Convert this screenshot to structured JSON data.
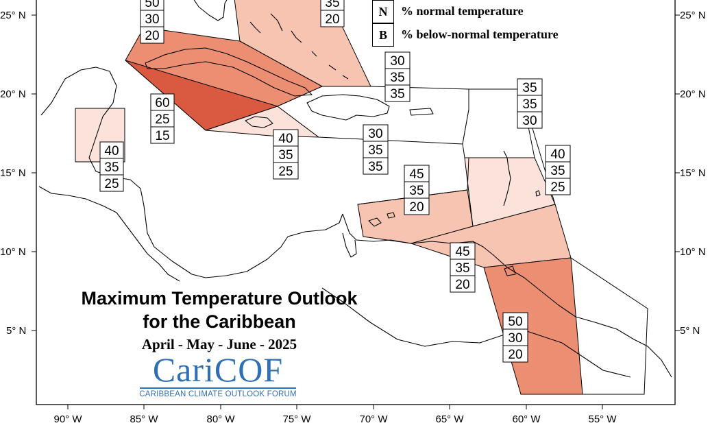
{
  "title": {
    "line1": "Maximum Temperature Outlook",
    "line2": "for the Caribbean",
    "period": "April - May - June - 2025"
  },
  "logo": {
    "name_prefix": "Cari",
    "name_suffix": "COF",
    "tagline": "CARIBBEAN CLIMATE OUTLOOK FORUM"
  },
  "legend": [
    {
      "key": "N",
      "text": "% normal temperature"
    },
    {
      "key": "B",
      "text": "% below-normal temperature"
    }
  ],
  "axes": {
    "lat_labels": [
      "25° N",
      "20° N",
      "15° N",
      "10° N",
      "5° N"
    ],
    "lon_labels": [
      "90° W",
      "85° W",
      "80° W",
      "75° W",
      "70° W",
      "65° W",
      "60° W",
      "55° W"
    ]
  },
  "colors": {
    "above_40": "#fbe3db",
    "above_45": "#f7c4b1",
    "above_50": "#ec8e72",
    "above_60": "#d95a40",
    "border": "#000000"
  },
  "probability_boxes": [
    {
      "region": "bahamas-west",
      "above": "50",
      "normal": "30",
      "below": "20"
    },
    {
      "region": "bahamas-east",
      "above": "",
      "normal": "35",
      "below": "20"
    },
    {
      "region": "belize",
      "above": "40",
      "normal": "35",
      "below": "25"
    },
    {
      "region": "cayman-jamaica",
      "above": "60",
      "normal": "25",
      "below": "15"
    },
    {
      "region": "jamaica-haiti-sea",
      "above": "40",
      "normal": "35",
      "below": "25"
    },
    {
      "region": "turks-caicos",
      "above": "30",
      "normal": "35",
      "below": "35"
    },
    {
      "region": "hispaniola-puerto-rico",
      "above": "30",
      "normal": "35",
      "below": "35"
    },
    {
      "region": "leeward-islands",
      "above": "35",
      "normal": "35",
      "below": "30"
    },
    {
      "region": "windward-islands",
      "above": "40",
      "normal": "35",
      "below": "25"
    },
    {
      "region": "abc-islands",
      "above": "45",
      "normal": "35",
      "below": "20"
    },
    {
      "region": "trinidad-tobago",
      "above": "45",
      "normal": "35",
      "below": "20"
    },
    {
      "region": "guianas",
      "above": "50",
      "normal": "30",
      "below": "20"
    }
  ]
}
